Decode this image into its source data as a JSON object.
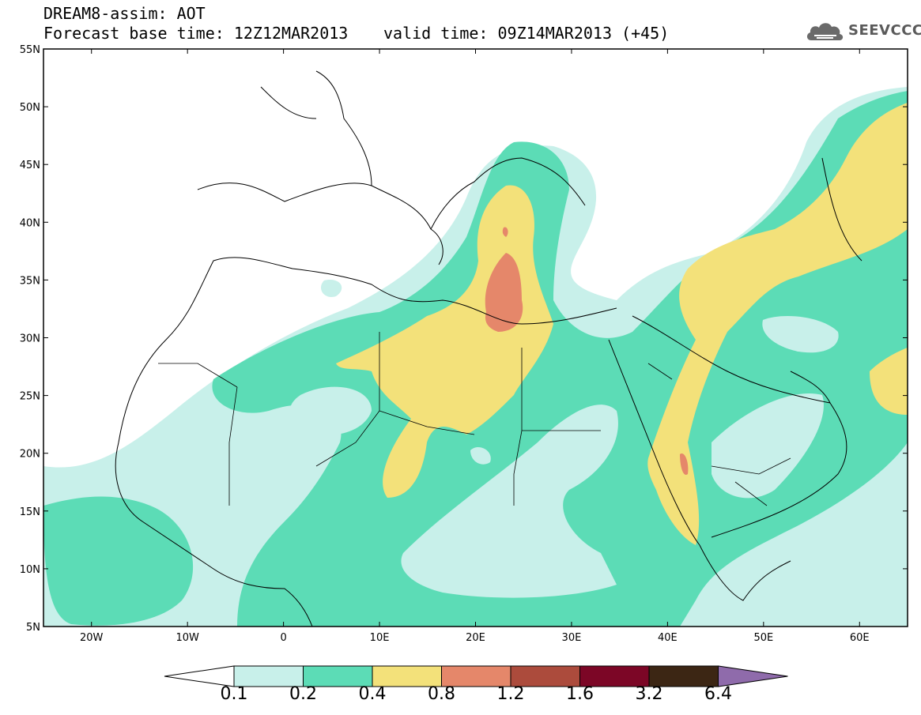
{
  "header": {
    "title": "DREAM8-assim: AOT",
    "base_time": "Forecast base time: 12Z12MAR2013",
    "valid_time": "valid time: 09Z14MAR2013 (+45)",
    "logo_text": "SEEVCCC",
    "logo_icon": "cloud-icon"
  },
  "map": {
    "lat_labels": [
      "55N",
      "50N",
      "45N",
      "40N",
      "35N",
      "30N",
      "25N",
      "20N",
      "15N",
      "10N",
      "5N"
    ],
    "lon_labels": [
      "20W",
      "10W",
      "0",
      "10E",
      "20E",
      "30E",
      "40E",
      "50E",
      "60E"
    ],
    "lon_range": [
      -25,
      65
    ],
    "lat_range": [
      5,
      55
    ]
  },
  "colorbar": {
    "labels": [
      "0.1",
      "0.2",
      "0.4",
      "0.8",
      "1.2",
      "1.6",
      "3.2",
      "6.4"
    ],
    "colors": [
      "#c8f0ea",
      "#5cdcb6",
      "#f3e17a",
      "#e5876a",
      "#ac4b3c",
      "#7c0626",
      "#3c2614",
      "#8f6bab"
    ],
    "under_color": "#ffffff"
  }
}
